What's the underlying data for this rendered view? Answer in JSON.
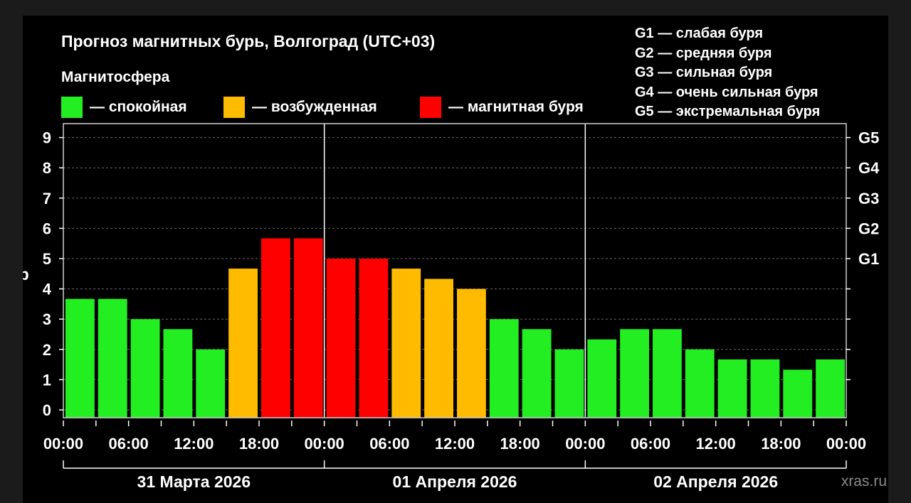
{
  "title": "Прогноз магнитных бурь, Волгоград (UTC+03)",
  "legend": {
    "title": "Магнитосфера",
    "items": [
      {
        "label": "— спокойная",
        "color": "#22ee22"
      },
      {
        "label": "— возбужденная",
        "color": "#ffbb00"
      },
      {
        "label": "— магнитная буря",
        "color": "#ff0000"
      }
    ]
  },
  "g_levels": [
    "G1 — слабая буря",
    "G2 — средняя буря",
    "G3 — сильная буря",
    "G4 — очень сильная буря",
    "G5 — экстремальная буря"
  ],
  "watermark": "xras.ru",
  "chart_data": {
    "type": "bar",
    "ylabel": "Kp",
    "ylim": [
      0,
      9
    ],
    "y_ticks": [
      "0",
      "1",
      "2",
      "3",
      "4",
      "5",
      "6",
      "7",
      "8",
      "9"
    ],
    "right_ticks": [
      {
        "value": 5,
        "label": "G1"
      },
      {
        "value": 6,
        "label": "G2"
      },
      {
        "value": 7,
        "label": "G3"
      },
      {
        "value": 8,
        "label": "G4"
      },
      {
        "value": 9,
        "label": "G5"
      }
    ],
    "grid": "dashed horizontal",
    "x_tick_labels": [
      "00:00",
      "06:00",
      "12:00",
      "18:00",
      "00:00",
      "06:00",
      "12:00",
      "18:00",
      "00:00",
      "06:00",
      "12:00",
      "18:00",
      "00:00"
    ],
    "days": [
      "31 Марта 2026",
      "01 Апреля 2026",
      "02 Апреля 2026"
    ],
    "interval_hours": 3,
    "values": [
      3.67,
      3.67,
      3.0,
      2.67,
      2.0,
      4.67,
      5.67,
      5.67,
      5.0,
      5.0,
      4.67,
      4.33,
      4.0,
      3.0,
      2.67,
      2.0,
      2.33,
      2.67,
      2.67,
      2.0,
      1.67,
      1.67,
      1.33,
      1.67
    ],
    "categories": [
      "quiet",
      "quiet",
      "quiet",
      "quiet",
      "quiet",
      "active",
      "storm",
      "storm",
      "storm",
      "storm",
      "active",
      "active",
      "active",
      "quiet",
      "quiet",
      "quiet",
      "quiet",
      "quiet",
      "quiet",
      "quiet",
      "quiet",
      "quiet",
      "quiet",
      "quiet"
    ],
    "colors": {
      "quiet": "#22ee22",
      "active": "#ffbb00",
      "storm": "#ff0000"
    }
  }
}
